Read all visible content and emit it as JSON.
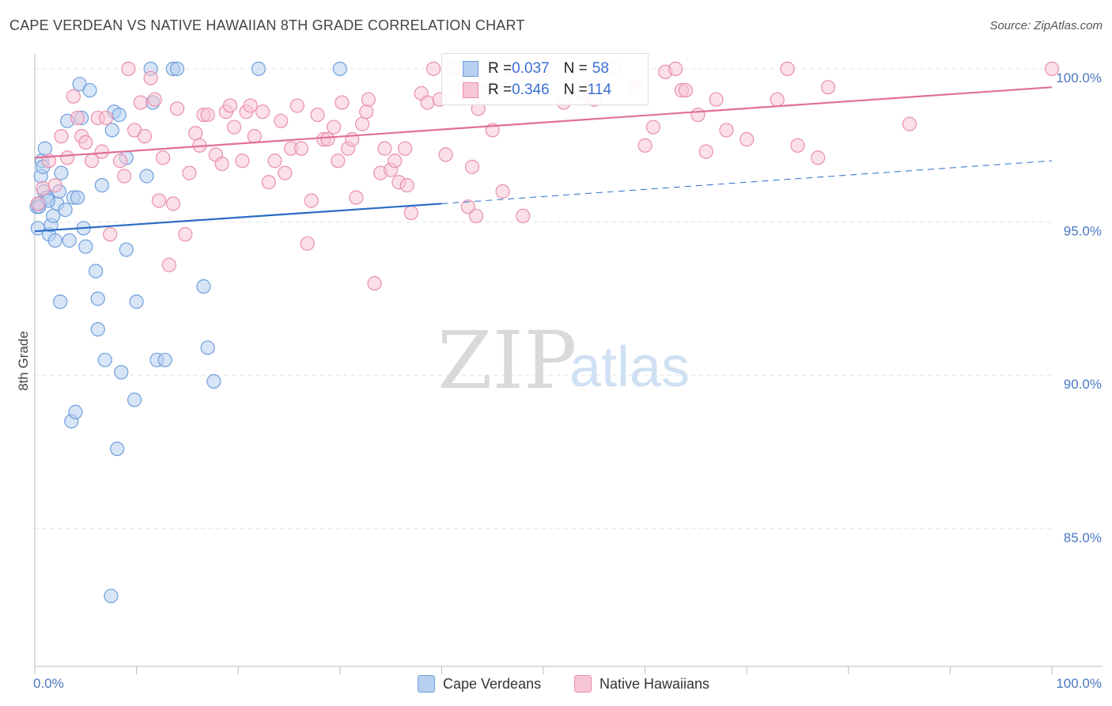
{
  "header": {
    "title": "CAPE VERDEAN VS NATIVE HAWAIIAN 8TH GRADE CORRELATION CHART",
    "source": "Source: ZipAtlas.com"
  },
  "watermark": {
    "zip": "ZIP",
    "atlas": "atlas"
  },
  "legend": {
    "series1": {
      "r_label": "R = ",
      "r_value": "0.037",
      "n_label": "N = ",
      "n_value": "58"
    },
    "series2": {
      "r_label": "R = ",
      "r_value": "0.346",
      "n_label": "N = ",
      "n_value": "114"
    }
  },
  "bottom_legend": {
    "series1": "Cape Verdeans",
    "series2": "Native Hawaiians"
  },
  "colors": {
    "blue_fill": "#b8d0f0",
    "blue_stroke": "#6f9fdc",
    "blue_line": "#2b6cc4",
    "pink_fill": "#f7c6d5",
    "pink_stroke": "#e98fad",
    "pink_line": "#e0709a",
    "tick": "#4a78c2",
    "grid": "#e3e3e3"
  },
  "chart_data": {
    "type": "scatter",
    "title": "CAPE VERDEAN VS NATIVE HAWAIIAN 8TH GRADE CORRELATION CHART",
    "xlabel": "",
    "ylabel": "8th Grade",
    "xlim": [
      0,
      100
    ],
    "ylim": [
      80.5,
      100.8
    ],
    "x_tick_labels": [
      {
        "value": 0,
        "label": "0.0%"
      },
      {
        "value": 100,
        "label": "100.0%"
      }
    ],
    "y_tick_labels": [
      {
        "value": 100,
        "label": "100.0%"
      },
      {
        "value": 95,
        "label": "95.0%"
      },
      {
        "value": 90,
        "label": "90.0%"
      },
      {
        "value": 85,
        "label": "85.0%"
      }
    ],
    "series": [
      {
        "name": "Cape Verdeans",
        "color": "#6f9fdc",
        "trend": {
          "x0": 0,
          "y0": 94.7,
          "x1": 40,
          "y1": 95.6,
          "dashed_to_x": 100,
          "dashed_to_y": 97.0
        },
        "points": [
          [
            0.2,
            95.5
          ],
          [
            0.3,
            94.8
          ],
          [
            0.5,
            95.6
          ],
          [
            0.6,
            96.5
          ],
          [
            0.7,
            97.0
          ],
          [
            0.9,
            96.0
          ],
          [
            1.0,
            97.4
          ],
          [
            1.2,
            95.8
          ],
          [
            1.4,
            94.6
          ],
          [
            1.6,
            94.9
          ],
          [
            1.8,
            95.2
          ],
          [
            2.0,
            94.4
          ],
          [
            2.2,
            95.6
          ],
          [
            2.4,
            96.0
          ],
          [
            2.6,
            96.6
          ],
          [
            3.0,
            95.4
          ],
          [
            3.2,
            98.3
          ],
          [
            3.4,
            94.4
          ],
          [
            3.6,
            88.5
          ],
          [
            3.8,
            95.8
          ],
          [
            4.0,
            88.8
          ],
          [
            4.2,
            95.8
          ],
          [
            4.4,
            99.5
          ],
          [
            4.6,
            98.4
          ],
          [
            4.8,
            94.8
          ],
          [
            5.0,
            94.2
          ],
          [
            5.4,
            99.3
          ],
          [
            6.0,
            93.4
          ],
          [
            6.2,
            91.5
          ],
          [
            6.6,
            96.2
          ],
          [
            6.9,
            90.5
          ],
          [
            7.6,
            98.0
          ],
          [
            7.8,
            98.6
          ],
          [
            8.1,
            87.6
          ],
          [
            8.3,
            98.5
          ],
          [
            8.5,
            90.1
          ],
          [
            9.0,
            97.1
          ],
          [
            9.0,
            94.1
          ],
          [
            9.8,
            89.2
          ],
          [
            10.0,
            92.4
          ],
          [
            11.0,
            96.5
          ],
          [
            11.4,
            100.0
          ],
          [
            11.6,
            98.9
          ],
          [
            12.0,
            90.5
          ],
          [
            12.8,
            90.5
          ],
          [
            13.6,
            100.0
          ],
          [
            14.0,
            100.0
          ],
          [
            16.6,
            92.9
          ],
          [
            17.0,
            90.9
          ],
          [
            17.6,
            89.8
          ],
          [
            22.0,
            100.0
          ],
          [
            30.0,
            100.0
          ],
          [
            2.5,
            92.4
          ],
          [
            1.3,
            95.7
          ],
          [
            0.8,
            96.8
          ],
          [
            0.4,
            95.5
          ],
          [
            6.2,
            92.5
          ],
          [
            7.5,
            82.8
          ]
        ]
      },
      {
        "name": "Native Hawaiians",
        "color": "#e98fad",
        "trend": {
          "x0": 0,
          "y0": 97.1,
          "x1": 100,
          "y1": 99.4
        },
        "points": [
          [
            0.3,
            95.6
          ],
          [
            0.8,
            96.1
          ],
          [
            1.4,
            97.0
          ],
          [
            2.0,
            96.2
          ],
          [
            2.6,
            97.8
          ],
          [
            3.2,
            97.1
          ],
          [
            3.8,
            99.1
          ],
          [
            4.2,
            98.4
          ],
          [
            4.6,
            97.8
          ],
          [
            5.0,
            97.6
          ],
          [
            5.6,
            97.0
          ],
          [
            6.2,
            98.4
          ],
          [
            6.6,
            97.3
          ],
          [
            7.0,
            98.4
          ],
          [
            7.4,
            94.6
          ],
          [
            8.4,
            97.0
          ],
          [
            8.8,
            96.5
          ],
          [
            9.2,
            100.0
          ],
          [
            9.8,
            98.0
          ],
          [
            10.4,
            98.9
          ],
          [
            10.8,
            97.8
          ],
          [
            11.4,
            99.7
          ],
          [
            11.8,
            99.0
          ],
          [
            12.2,
            95.7
          ],
          [
            12.6,
            97.1
          ],
          [
            13.2,
            93.6
          ],
          [
            13.6,
            95.6
          ],
          [
            14.0,
            98.7
          ],
          [
            14.8,
            94.6
          ],
          [
            15.2,
            96.6
          ],
          [
            15.8,
            97.9
          ],
          [
            16.2,
            97.5
          ],
          [
            16.6,
            98.5
          ],
          [
            17.0,
            98.5
          ],
          [
            17.8,
            97.2
          ],
          [
            18.4,
            96.9
          ],
          [
            18.8,
            98.6
          ],
          [
            19.2,
            98.8
          ],
          [
            19.6,
            98.1
          ],
          [
            20.4,
            97.0
          ],
          [
            20.8,
            98.6
          ],
          [
            21.2,
            98.8
          ],
          [
            21.6,
            97.8
          ],
          [
            22.4,
            98.6
          ],
          [
            23.0,
            96.3
          ],
          [
            23.6,
            97.0
          ],
          [
            24.2,
            98.3
          ],
          [
            24.6,
            96.6
          ],
          [
            25.2,
            97.4
          ],
          [
            25.8,
            98.8
          ],
          [
            26.2,
            97.4
          ],
          [
            26.8,
            94.3
          ],
          [
            27.2,
            95.7
          ],
          [
            27.8,
            98.5
          ],
          [
            28.4,
            97.7
          ],
          [
            28.8,
            97.7
          ],
          [
            29.4,
            98.1
          ],
          [
            29.8,
            97.0
          ],
          [
            30.2,
            98.9
          ],
          [
            30.8,
            97.4
          ],
          [
            31.2,
            97.7
          ],
          [
            31.6,
            95.8
          ],
          [
            32.2,
            98.2
          ],
          [
            32.6,
            98.6
          ],
          [
            32.8,
            99.0
          ],
          [
            33.4,
            93.0
          ],
          [
            34.0,
            96.6
          ],
          [
            34.4,
            97.4
          ],
          [
            35.0,
            96.7
          ],
          [
            35.4,
            97.0
          ],
          [
            35.8,
            96.3
          ],
          [
            36.4,
            97.4
          ],
          [
            37.0,
            95.3
          ],
          [
            38.0,
            99.2
          ],
          [
            38.6,
            98.9
          ],
          [
            39.2,
            100.0
          ],
          [
            39.8,
            99.0
          ],
          [
            40.4,
            97.2
          ],
          [
            41.2,
            100.0
          ],
          [
            42.0,
            99.4
          ],
          [
            42.6,
            95.5
          ],
          [
            43.0,
            96.8
          ],
          [
            43.4,
            95.2
          ],
          [
            44.0,
            99.2
          ],
          [
            45.0,
            98.0
          ],
          [
            46.0,
            96.0
          ],
          [
            47.0,
            100.0
          ],
          [
            48.0,
            95.2
          ],
          [
            50.0,
            100.0
          ],
          [
            52.0,
            98.9
          ],
          [
            54.0,
            99.2
          ],
          [
            55.0,
            99.0
          ],
          [
            57.0,
            100.0
          ],
          [
            60.0,
            97.5
          ],
          [
            60.8,
            98.1
          ],
          [
            62.0,
            99.9
          ],
          [
            63.0,
            100.0
          ],
          [
            63.6,
            99.3
          ],
          [
            64.0,
            99.3
          ],
          [
            65.2,
            98.5
          ],
          [
            66.0,
            97.3
          ],
          [
            67.0,
            99.0
          ],
          [
            68.0,
            98.0
          ],
          [
            70.0,
            97.7
          ],
          [
            73.0,
            99.0
          ],
          [
            74.0,
            100.0
          ],
          [
            75.0,
            97.5
          ],
          [
            77.0,
            97.1
          ],
          [
            78.0,
            99.4
          ],
          [
            86.0,
            98.2
          ],
          [
            100.0,
            100.0
          ],
          [
            43.6,
            98.7
          ],
          [
            59.0,
            99.4
          ],
          [
            36.6,
            96.2
          ]
        ]
      }
    ]
  }
}
